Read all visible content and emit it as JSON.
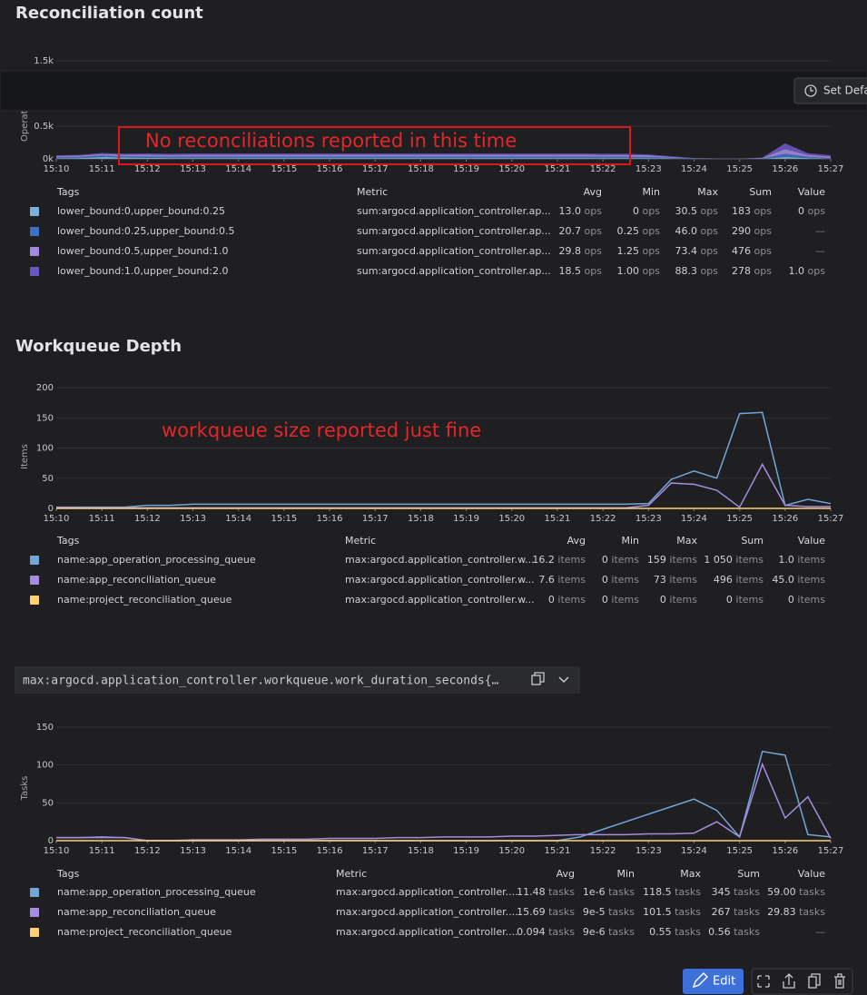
{
  "chart_data": [
    {
      "type": "area",
      "stacked": true,
      "title": "Reconciliation count",
      "ylabel": "Operations",
      "annotation": "No reconciliations reported in this time",
      "categories": [
        "15:10",
        null,
        "15:11",
        null,
        "15:12",
        null,
        "15:13",
        null,
        "15:14",
        null,
        "15:15",
        null,
        "15:16",
        null,
        "15:17",
        null,
        "15:18",
        null,
        "15:19",
        null,
        "15:20",
        null,
        "15:21",
        null,
        "15:22",
        null,
        "15:23",
        null,
        "15:24",
        null,
        "15:25",
        null,
        "15:26",
        null,
        "15:27"
      ],
      "ylim": [
        0,
        1500
      ],
      "yticks": [
        {
          "value": 0,
          "label": "0k"
        },
        {
          "value": 500,
          "label": "0.5k"
        },
        {
          "value": 1500,
          "label": "1.5k"
        }
      ],
      "grid": true,
      "series": [
        {
          "name": "lower_bound:0,upper_bound:0.25",
          "color": "#7eb0dd",
          "values": [
            10,
            12,
            30,
            20,
            15,
            12,
            12,
            12,
            13,
            13,
            13,
            13,
            13,
            13,
            13,
            13,
            13,
            13,
            13,
            13,
            13,
            13,
            13,
            13,
            12,
            12,
            10,
            5,
            2,
            0,
            0,
            0,
            30.5,
            12,
            0
          ]
        },
        {
          "name": "lower_bound:0.25,upper_bound:0.5",
          "color": "#3d71c7",
          "values": [
            15,
            15,
            20,
            18,
            20,
            20,
            21,
            21,
            21,
            21,
            21,
            21,
            21,
            21,
            21,
            21,
            21,
            21,
            21,
            21,
            21,
            21,
            21,
            21,
            20,
            20,
            18,
            10,
            3,
            2,
            1,
            5,
            46,
            20,
            10
          ]
        },
        {
          "name": "lower_bound:0.5,upper_bound:1.0",
          "color": "#a08ade",
          "values": [
            20,
            22,
            25,
            25,
            28,
            28,
            30,
            30,
            30,
            30,
            30,
            30,
            30,
            30,
            30,
            30,
            30,
            30,
            30,
            30,
            30,
            30,
            30,
            30,
            28,
            28,
            25,
            15,
            5,
            3,
            2,
            10,
            73.4,
            30,
            25
          ]
        },
        {
          "name": "lower_bound:1.0,upper_bound:2.0",
          "color": "#6b57c0",
          "values": [
            10,
            12,
            15,
            15,
            18,
            18,
            18,
            18,
            18,
            18,
            18,
            18,
            18,
            18,
            18,
            18,
            18,
            18,
            18,
            18,
            18,
            18,
            18,
            18,
            18,
            18,
            15,
            10,
            3,
            2,
            1,
            5,
            88.3,
            25,
            20
          ]
        }
      ]
    },
    {
      "type": "line",
      "title": "Workqueue Depth",
      "ylabel": "Items",
      "annotation": "workqueue size reported just fine",
      "categories": [
        "15:10",
        null,
        "15:11",
        null,
        "15:12",
        null,
        "15:13",
        null,
        "15:14",
        null,
        "15:15",
        null,
        "15:16",
        null,
        "15:17",
        null,
        "15:18",
        null,
        "15:19",
        null,
        "15:20",
        null,
        "15:21",
        null,
        "15:22",
        null,
        "15:23",
        null,
        "15:24",
        null,
        "15:25",
        null,
        "15:26",
        null,
        "15:27"
      ],
      "ylim": [
        0,
        200
      ],
      "yticks": [
        0,
        50,
        100,
        150,
        200
      ],
      "grid": true,
      "series": [
        {
          "name": "name:app_operation_processing_queue",
          "color": "#73a6d8",
          "values": [
            2,
            2,
            2,
            2,
            5,
            5,
            7,
            7,
            7,
            7,
            7,
            7,
            7,
            7,
            7,
            7,
            7,
            7,
            7,
            7,
            7,
            7,
            7,
            7,
            7,
            7,
            8,
            48,
            62,
            50,
            157,
            159,
            5,
            15,
            8
          ]
        },
        {
          "name": "name:app_reconciliation_queue",
          "color": "#a48ddf",
          "values": [
            2,
            1,
            1,
            1,
            1,
            1,
            1,
            1,
            1,
            1,
            1,
            1,
            1,
            1,
            1,
            1,
            1,
            1,
            1,
            1,
            1,
            1,
            1,
            1,
            1,
            1,
            5,
            42,
            40,
            30,
            2,
            73,
            5,
            3,
            3
          ]
        },
        {
          "name": "name:project_reconciliation_queue",
          "color": "#fdd276",
          "values": [
            0,
            0,
            0,
            0,
            0,
            0,
            0,
            0,
            0,
            0,
            0,
            0,
            0,
            0,
            0,
            0,
            0,
            0,
            0,
            0,
            0,
            0,
            0,
            0,
            0,
            0,
            0,
            0,
            0,
            0,
            0,
            0,
            0,
            0,
            0
          ]
        }
      ]
    },
    {
      "type": "line",
      "ylabel": "Tasks",
      "categories": [
        "15:10",
        null,
        "15:11",
        null,
        "15:12",
        null,
        "15:13",
        null,
        "15:14",
        null,
        "15:15",
        null,
        "15:16",
        null,
        "15:17",
        null,
        "15:18",
        null,
        "15:19",
        null,
        "15:20",
        null,
        "15:21",
        null,
        "15:22",
        null,
        "15:23",
        null,
        "15:24",
        null,
        "15:25",
        null,
        "15:26",
        null,
        "15:27"
      ],
      "ylim": [
        0,
        150
      ],
      "yticks": [
        0,
        50,
        100,
        150
      ],
      "grid": true,
      "series": [
        {
          "name": "name:app_operation_processing_queue",
          "color": "#73a6d8",
          "values": [
            4,
            4,
            5,
            4,
            0,
            0,
            0,
            0,
            0,
            0,
            0,
            0,
            0,
            0,
            0,
            0,
            0,
            0,
            0,
            0,
            0,
            0,
            0,
            5,
            15,
            25,
            35,
            45,
            55,
            40,
            5,
            118,
            113,
            8,
            5
          ]
        },
        {
          "name": "name:app_reconciliation_queue",
          "color": "#a48ddf",
          "values": [
            4,
            4,
            4,
            4,
            0,
            0,
            1,
            1,
            1,
            2,
            2,
            2,
            3,
            3,
            3,
            4,
            4,
            5,
            5,
            5,
            6,
            6,
            7,
            8,
            8,
            8,
            9,
            9,
            10,
            25,
            5,
            101,
            30,
            58,
            3
          ]
        },
        {
          "name": "name:project_reconciliation_queue",
          "color": "#fdd276",
          "values": [
            0,
            0,
            0,
            0,
            0,
            0,
            0,
            0,
            0,
            0,
            0,
            0,
            0,
            0,
            0,
            0,
            0,
            0,
            0,
            0,
            0,
            0,
            0,
            0,
            0,
            0,
            0,
            0,
            0,
            0,
            0,
            0,
            0,
            0,
            0
          ]
        }
      ]
    }
  ],
  "tables": [
    {
      "headers": [
        "Tags",
        "Metric",
        "Avg",
        "Min",
        "Max",
        "Sum",
        "Value"
      ],
      "unit": "ops",
      "rows": [
        [
          "sum:argocd.application_controller.ap...",
          "13.0",
          "0",
          "30.5",
          "183",
          "0"
        ],
        [
          "sum:argocd.application_controller.ap...",
          "20.7",
          "0.25",
          "46.0",
          "290",
          "—"
        ],
        [
          "sum:argocd.application_controller.ap...",
          "29.8",
          "1.25",
          "73.4",
          "476",
          "—"
        ],
        [
          "sum:argocd.application_controller.ap...",
          "18.5",
          "1.00",
          "88.3",
          "278",
          "1.0"
        ]
      ]
    },
    {
      "headers": [
        "Tags",
        "Metric",
        "Avg",
        "Min",
        "Max",
        "Sum",
        "Value"
      ],
      "unit": "items",
      "rows": [
        [
          "max:argocd.application_controller.w...",
          "16.2",
          "0",
          "159",
          "1 050",
          "1.0"
        ],
        [
          "max:argocd.application_controller.w...",
          "7.6",
          "0",
          "73",
          "496",
          "45.0"
        ],
        [
          "max:argocd.application_controller.w...",
          "0",
          "0",
          "0",
          "0",
          "0"
        ]
      ]
    },
    {
      "headers": [
        "Tags",
        "Metric",
        "Avg",
        "Min",
        "Max",
        "Sum",
        "Value"
      ],
      "unit": "tasks",
      "rows": [
        [
          "max:argocd.application_controller....",
          "11.48",
          "1e-6",
          "118.5",
          "345",
          "59.00"
        ],
        [
          "max:argocd.application_controller....",
          "15.69",
          "9e-5",
          "101.5",
          "267",
          "29.83"
        ],
        [
          "max:argocd.application_controller....",
          "0.094",
          "9e-6",
          "0.55",
          "0.56",
          "—"
        ]
      ]
    }
  ],
  "toolbar": {
    "button": "Set Default"
  },
  "query": "max:argocd.application_controller.workqueue.work_duration_seconds{…",
  "footer": {
    "edit": "Edit"
  }
}
